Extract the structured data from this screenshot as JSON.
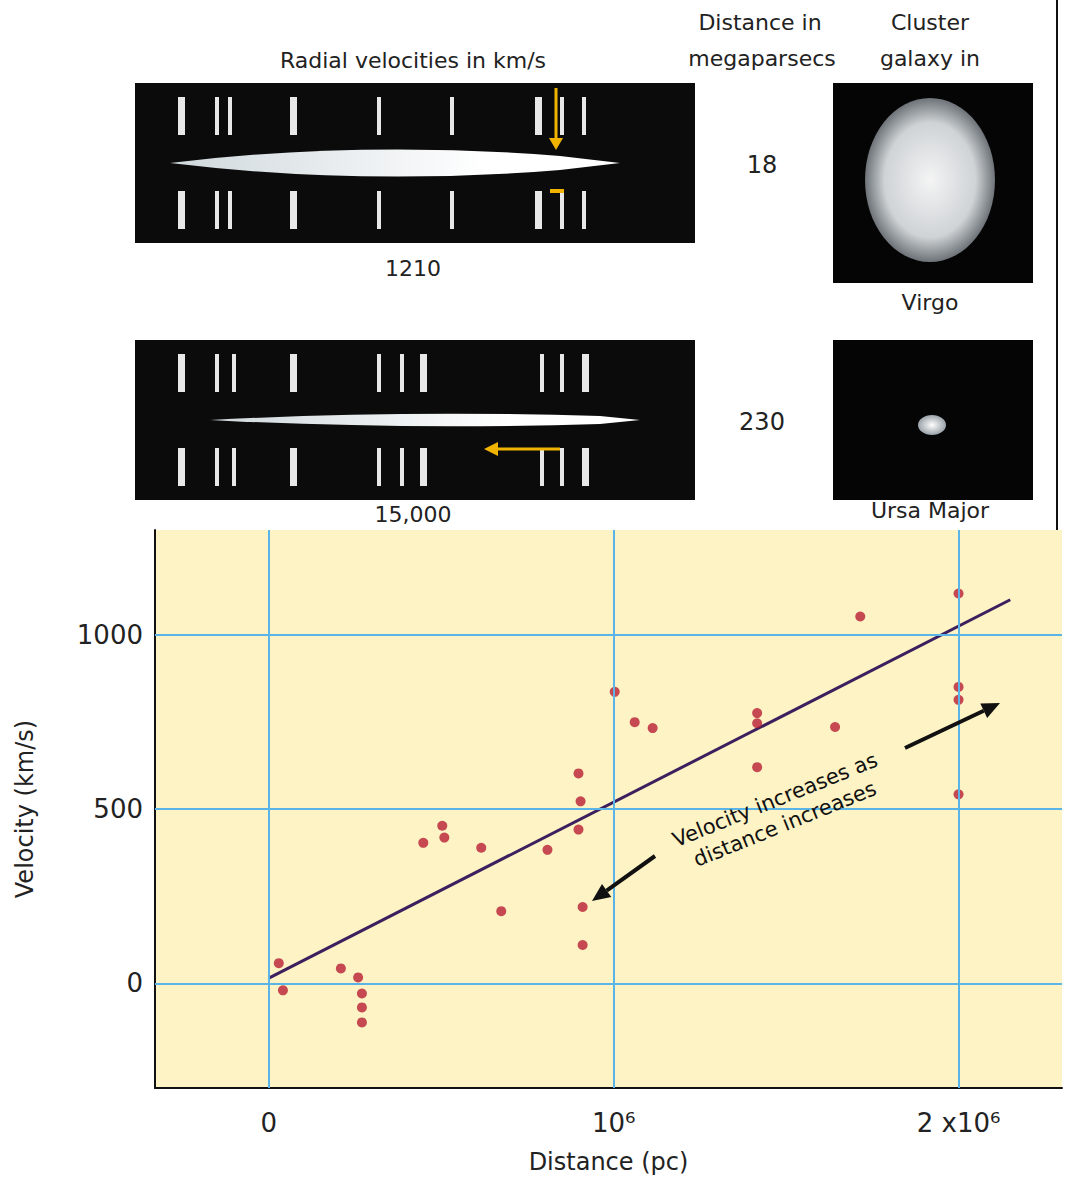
{
  "panels": {
    "header": {
      "velocity_title": "Radial velocities in km/s",
      "distance_title": [
        "Distance in",
        "megaparsecs"
      ],
      "cluster_title": [
        "Cluster",
        "galaxy in"
      ]
    },
    "rows": [
      {
        "velocity": 1210,
        "velocity_label": "1210",
        "distance": 18,
        "cluster": "Virgo"
      },
      {
        "velocity": 15000,
        "velocity_label": "15,000",
        "distance": 230,
        "cluster": "Ursa Major"
      }
    ]
  },
  "chart_data": {
    "type": "scatter",
    "x_label": "Distance (pc)",
    "y_label": "Velocity (km/s)",
    "annotation": [
      "Velocity increases as",
      "distance increases"
    ],
    "xlim": [
      -330000,
      2300000
    ],
    "ylim": [
      -300,
      1300
    ],
    "xticks": [
      0,
      {
        "value": 1000000,
        "label": "10⁶"
      },
      {
        "value": 2000000,
        "label": "2 x10⁶"
      }
    ],
    "yticks": [
      0,
      500,
      1000
    ],
    "grid": true,
    "series": [
      {
        "type": "scatter",
        "marker": "circle",
        "color": "#b81d35",
        "x": [
          29000,
          41000,
          209000,
          259000,
          270000,
          270000,
          270000,
          448000,
          503000,
          509000,
          616000,
          674000,
          808000,
          898000,
          904000,
          898000,
          910000,
          910000,
          1003000,
          1061000,
          1113000,
          1416000,
          1416000,
          1416000,
          1642000,
          1715000,
          2000000,
          2000000,
          2000000,
          2000000
        ],
        "values": [
          58,
          -20,
          43,
          17,
          -29,
          -69,
          -112,
          403,
          452,
          418,
          389,
          207,
          383,
          602,
          522,
          441,
          219,
          110,
          836,
          749,
          732,
          775,
          746,
          620,
          735,
          1052,
          1118,
          850,
          813,
          542
        ]
      },
      {
        "type": "line",
        "line_style": "solid",
        "color": "#3b1f5e",
        "x": [
          0,
          2150000
        ],
        "values": [
          15,
          1100
        ]
      }
    ]
  }
}
